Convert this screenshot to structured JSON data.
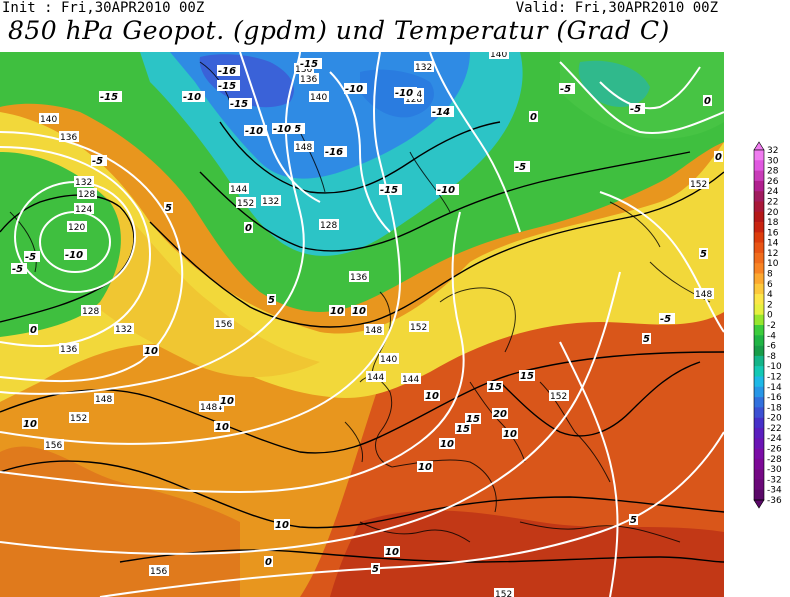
{
  "header": {
    "init_label": "Init : Fri,30APR2010 00Z",
    "valid_label": "Valid: Fri,30APR2010 00Z",
    "title": "850 hPa Geopot. (gpdm) und Temperatur (Grad C)"
  },
  "legend": {
    "ticks": [
      "32",
      "30",
      "28",
      "26",
      "24",
      "22",
      "20",
      "18",
      "16",
      "14",
      "12",
      "10",
      "8",
      "6",
      "4",
      "2",
      "0",
      "-2",
      "-4",
      "-6",
      "-8",
      "-10",
      "-12",
      "-14",
      "-16",
      "-18",
      "-20",
      "-22",
      "-24",
      "-26",
      "-28",
      "-30",
      "-32",
      "-34",
      "-36"
    ],
    "colors": [
      "#f07cf0",
      "#e058e0",
      "#c83cb8",
      "#b0208e",
      "#a01c5e",
      "#a81838",
      "#b41818",
      "#c82410",
      "#dc3c0c",
      "#e85414",
      "#f06c1c",
      "#f88424",
      "#fca830",
      "#fcc83c",
      "#fce648",
      "#e6f040",
      "#96e62e",
      "#3ccc3c",
      "#20b444",
      "#189c48",
      "#14b488",
      "#14c8b4",
      "#1eb8e6",
      "#2896e6",
      "#3270dc",
      "#3c50d2",
      "#4630c8",
      "#5a1ebe",
      "#6a14b4",
      "#7a0ca6",
      "#7c0896",
      "#740884",
      "#6a0878",
      "#5a0868"
    ]
  },
  "map": {
    "colors": {
      "ocean_warm": "#e8961e",
      "land_hot": "#d24618",
      "yellow": "#f2e03a",
      "green": "#40c040",
      "cyan": "#2bc6c8",
      "blue": "#2d8ee6",
      "isoline_geo": "#ffffff",
      "isoline_temp": "#000000"
    },
    "geopotential_labels": [
      "140",
      "136",
      "132",
      "128",
      "124",
      "120",
      "140",
      "136",
      "132",
      "128",
      "124",
      "136",
      "140",
      "148",
      "144",
      "152",
      "132",
      "128",
      "136",
      "148",
      "152",
      "156",
      "144",
      "148",
      "152",
      "156",
      "148",
      "140",
      "144",
      "136",
      "132",
      "128",
      "144",
      "152",
      "148",
      "152",
      "156",
      "152"
    ],
    "temperature_labels": [
      "-5",
      "-10",
      "-15",
      "-16",
      "-15",
      "-15",
      "-16",
      "-15",
      "-14",
      "-10",
      "-10",
      "-10",
      "-15",
      "-10",
      "-5",
      "-5",
      "-5",
      "-10",
      "-15",
      "-10",
      "-5",
      "-5",
      "0",
      "0",
      "0",
      "0",
      "0",
      "5",
      "5",
      "5",
      "10",
      "10",
      "10",
      "10",
      "10",
      "10",
      "10",
      "15",
      "15",
      "15",
      "15",
      "20",
      "10",
      "10",
      "10",
      "10",
      "0",
      "5",
      "5",
      "-5",
      "5",
      "10"
    ]
  }
}
